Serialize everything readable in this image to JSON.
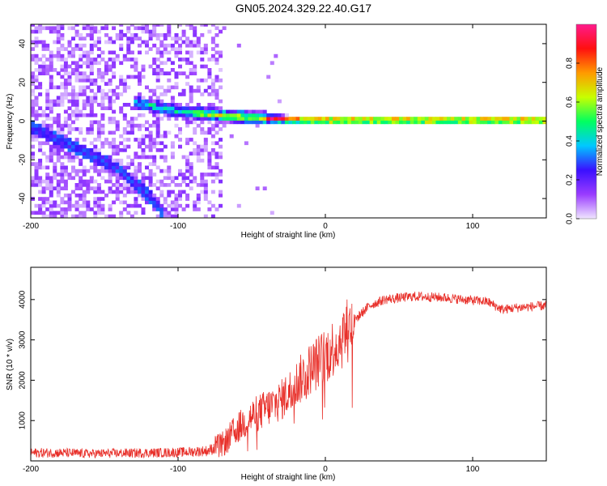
{
  "title": "GN05.2024.329.22.40.G17",
  "chart_data": [
    {
      "type": "heatmap",
      "xlabel": "Height of straight line (km)",
      "ylabel": "Frequency (Hz)",
      "xlim": [
        -200,
        150
      ],
      "ylim": [
        -50,
        50
      ],
      "xticks": [
        -200,
        -100,
        0,
        100
      ],
      "yticks": [
        -40,
        -20,
        0,
        20,
        40
      ],
      "colorbar": {
        "label": "Normalized spectral amplitude",
        "range": [
          0,
          1
        ],
        "ticks": [
          "0.0",
          "0.2",
          "0.4",
          "0.6",
          "0.8"
        ],
        "colors": [
          "#f0e6ff",
          "#9a3cff",
          "#3a10ff",
          "#00c8ff",
          "#00ff60",
          "#c8ff00",
          "#ff9a00",
          "#ff1010",
          "#ff1a8c"
        ]
      },
      "ridge": {
        "x": [
          -130,
          -100,
          -70,
          -50,
          -30,
          -10,
          20,
          60,
          100,
          150
        ],
        "y": [
          10,
          5,
          3,
          2,
          1,
          0.5,
          0.5,
          0.5,
          0.5,
          0.5
        ]
      },
      "secondary_ridge": {
        "x": [
          -200,
          -180,
          -160,
          -140,
          -120,
          -110
        ],
        "y": [
          -3,
          -10,
          -17,
          -25,
          -38,
          -48
        ]
      }
    },
    {
      "type": "line",
      "xlabel": "Height of straight line (km)",
      "ylabel": "SNR (10 * v/v)",
      "xlim": [
        -200,
        150
      ],
      "ylim": [
        0,
        4800
      ],
      "xticks": [
        -200,
        -100,
        0,
        100
      ],
      "yticks": [
        1000,
        2000,
        3000,
        4000
      ],
      "color": "#e8302a",
      "series": [
        {
          "name": "SNR",
          "x": [
            -200,
            -180,
            -160,
            -140,
            -120,
            -100,
            -80,
            -70,
            -60,
            -50,
            -40,
            -30,
            -20,
            -10,
            0,
            10,
            20,
            30,
            40,
            60,
            80,
            100,
            110,
            120,
            130,
            150
          ],
          "y": [
            200,
            200,
            180,
            190,
            200,
            210,
            250,
            400,
            800,
            1100,
            1300,
            1500,
            1900,
            2300,
            2600,
            3000,
            3500,
            3850,
            4000,
            4080,
            4050,
            3980,
            3950,
            3750,
            3800,
            3850
          ]
        }
      ]
    }
  ]
}
